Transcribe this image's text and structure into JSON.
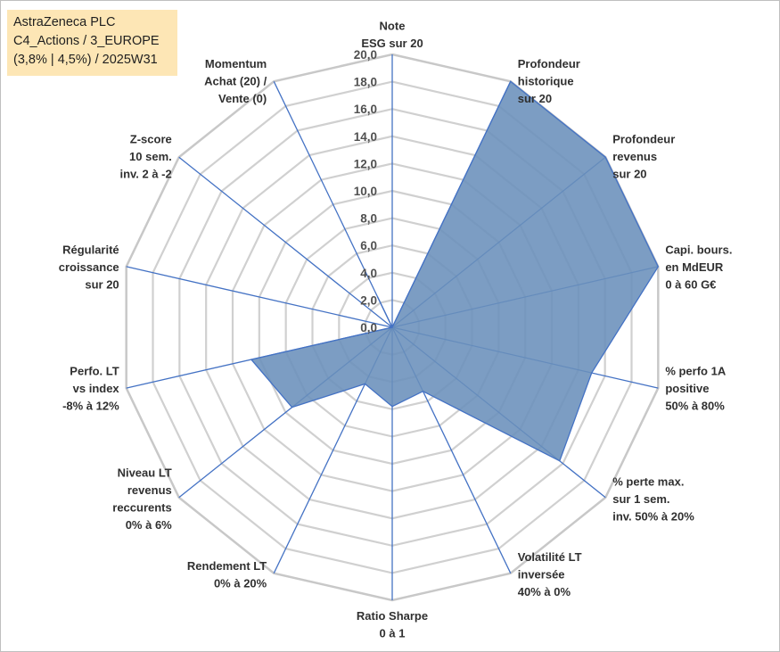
{
  "info_box": {
    "line1": "AstraZeneca PLC",
    "line2": "C4_Actions / 3_EUROPE",
    "line3": "(3,8% | 4,5%) / 2025W31"
  },
  "chart_data": {
    "type": "radar",
    "r_range": [
      0,
      20
    ],
    "tick_step": 2,
    "tick_labels": [
      "0,0",
      "2,0",
      "4,0",
      "6,0",
      "8,0",
      "10,0",
      "12,0",
      "14,0",
      "16,0",
      "18,0",
      "20,0"
    ],
    "grid": true,
    "legend": "none",
    "fill_color": "#6a8fbb",
    "line_color": "#4472c4",
    "grid_color": "#d0d0d0",
    "axes": [
      {
        "label": [
          "Note",
          "ESG sur 20"
        ],
        "value": 0
      },
      {
        "label": [
          "Profondeur",
          "historique",
          "sur 20"
        ],
        "value": 20
      },
      {
        "label": [
          "Profondeur",
          "revenus",
          "sur 20"
        ],
        "value": 20
      },
      {
        "label": [
          "Capi. bours.",
          "en MdEUR",
          "0 à 60 G€"
        ],
        "value": 20
      },
      {
        "label": [
          "% perfo 1A",
          "positive",
          "50% à 80%"
        ],
        "value": 15
      },
      {
        "label": [
          "% perte max.",
          "sur 1 sem.",
          "inv. 50% à 20%"
        ],
        "value": 15.7
      },
      {
        "label": [
          "Volatilité LT",
          "inversée",
          "40% à 0%"
        ],
        "value": 5.2
      },
      {
        "label": [
          "Ratio Sharpe",
          "0 à 1"
        ],
        "value": 5.8
      },
      {
        "label": [
          "Rendement LT",
          "0% à 20%"
        ],
        "value": 4.6
      },
      {
        "label": [
          "Niveau LT",
          "revenus",
          "reccurents",
          "0% à 6%"
        ],
        "value": 9.4
      },
      {
        "label": [
          "Perfo. LT",
          "vs index",
          "-8% à 12%"
        ],
        "value": 10.6
      },
      {
        "label": [
          "Régularité",
          "croissance",
          "sur 20"
        ],
        "value": 0
      },
      {
        "label": [
          "Z-score",
          "10 sem.",
          "inv. 2 à -2"
        ],
        "value": 0
      },
      {
        "label": [
          "Momentum",
          "Achat (20) /",
          "Vente (0)"
        ],
        "value": 2.5
      }
    ]
  }
}
